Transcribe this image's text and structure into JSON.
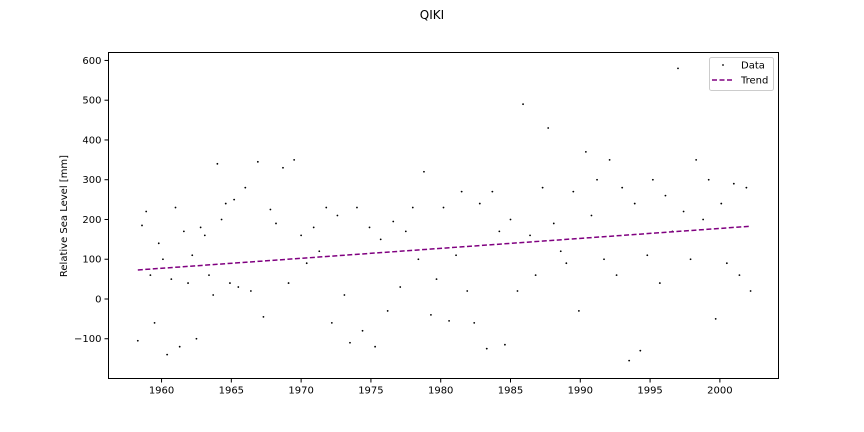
{
  "chart_data": {
    "type": "scatter",
    "title": "QIKI",
    "xlabel": "",
    "ylabel": "Relative Sea Level [mm]",
    "xlim": [
      1956.2,
      2004.2
    ],
    "ylim": [
      -200,
      620
    ],
    "xticks": [
      1960,
      1965,
      1970,
      1975,
      1980,
      1985,
      1990,
      1995,
      2000
    ],
    "yticks": [
      -100,
      0,
      100,
      200,
      300,
      400,
      500,
      600
    ],
    "legend_position": "top-right",
    "colors": {
      "data": "#000000",
      "trend": "#800080"
    },
    "series": [
      {
        "name": "Data",
        "style": "points",
        "x": [
          1958.3,
          1958.6,
          1958.9,
          1959.2,
          1959.5,
          1959.8,
          1960.1,
          1960.4,
          1960.7,
          1961.0,
          1961.3,
          1961.6,
          1961.9,
          1962.2,
          1962.5,
          1962.8,
          1963.1,
          1963.4,
          1963.7,
          1964.0,
          1964.3,
          1964.6,
          1964.9,
          1965.2,
          1965.5,
          1966.0,
          1966.4,
          1966.9,
          1967.3,
          1967.8,
          1968.2,
          1968.7,
          1969.1,
          1969.5,
          1970.0,
          1970.4,
          1970.9,
          1971.3,
          1971.8,
          1972.2,
          1972.6,
          1973.1,
          1973.5,
          1974.0,
          1974.4,
          1974.9,
          1975.3,
          1975.7,
          1976.2,
          1976.6,
          1977.1,
          1977.5,
          1978.0,
          1978.4,
          1978.8,
          1979.3,
          1979.7,
          1980.2,
          1980.6,
          1981.1,
          1981.5,
          1981.9,
          1982.4,
          1982.8,
          1983.3,
          1983.7,
          1984.2,
          1984.6,
          1985.0,
          1985.5,
          1985.9,
          1986.4,
          1986.8,
          1987.3,
          1987.7,
          1988.1,
          1988.6,
          1989.0,
          1989.5,
          1989.9,
          1990.4,
          1990.8,
          1991.2,
          1991.7,
          1992.1,
          1992.6,
          1993.0,
          1993.5,
          1993.9,
          1994.3,
          1994.8,
          1995.2,
          1995.7,
          1996.1,
          1996.6,
          1997.0,
          1997.4,
          1997.9,
          1998.3,
          1998.8,
          1999.2,
          1999.7,
          2000.1,
          2000.5,
          2001.0,
          2001.4,
          2001.9,
          2002.2
        ],
        "y": [
          -105,
          185,
          220,
          60,
          -60,
          140,
          100,
          -140,
          50,
          230,
          -120,
          170,
          40,
          110,
          -100,
          180,
          160,
          60,
          10,
          340,
          200,
          240,
          40,
          250,
          30,
          280,
          20,
          345,
          -45,
          225,
          190,
          330,
          40,
          350,
          160,
          90,
          180,
          120,
          230,
          -60,
          210,
          10,
          -110,
          230,
          -80,
          180,
          -120,
          150,
          -30,
          195,
          30,
          170,
          230,
          100,
          320,
          -40,
          50,
          230,
          -55,
          110,
          270,
          20,
          -60,
          240,
          -125,
          270,
          170,
          -115,
          200,
          20,
          490,
          160,
          60,
          280,
          430,
          190,
          120,
          90,
          270,
          -30,
          370,
          210,
          300,
          100,
          350,
          60,
          280,
          -155,
          240,
          -130,
          110,
          300,
          40,
          260,
          170,
          580,
          220,
          100,
          350,
          200,
          300,
          -50,
          240,
          90,
          290,
          60,
          280,
          20
        ]
      },
      {
        "name": "Trend",
        "style": "dashed-line",
        "x": [
          1958.3,
          2002.2
        ],
        "y": [
          73,
          183
        ]
      }
    ]
  }
}
